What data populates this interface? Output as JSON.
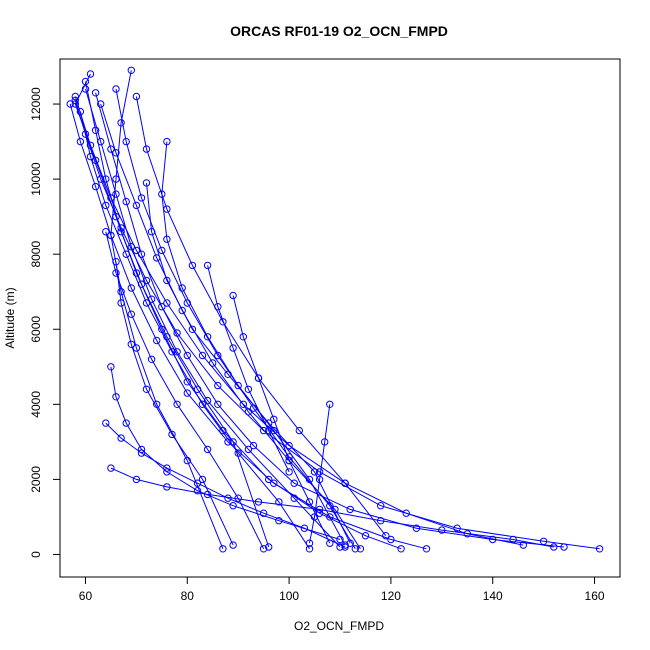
{
  "chart_data": {
    "type": "line",
    "title": "ORCAS RF01-19 O2_OCN_FMPD",
    "xlabel": "O2_OCN_FMPD",
    "ylabel": "Altitude (m)",
    "xlim": [
      55,
      165
    ],
    "ylim": [
      -600,
      13200
    ],
    "x_ticks": [
      60,
      80,
      100,
      120,
      140,
      160
    ],
    "y_ticks": [
      0,
      2000,
      4000,
      6000,
      8000,
      10000,
      12000
    ],
    "grid": false,
    "legend": "none",
    "marker": "open-circle",
    "series_color": "#0000ff",
    "series": [
      {
        "x": [
          61,
          58,
          62,
          66,
          70,
          75,
          80,
          87,
          96,
          106,
          115,
          122
        ],
        "y": [
          12800,
          12000,
          10500,
          9000,
          7500,
          6000,
          4600,
          3300,
          2000,
          1100,
          500,
          150
        ]
      },
      {
        "x": [
          58,
          60,
          63,
          67,
          72,
          78,
          86,
          95,
          106,
          118,
          133,
          150,
          161
        ],
        "y": [
          12100,
          11200,
          10000,
          8700,
          7300,
          5900,
          4500,
          3300,
          2200,
          1300,
          700,
          350,
          150
        ]
      },
      {
        "x": [
          60,
          63,
          66,
          69,
          73,
          78,
          84,
          92,
          101,
          110
        ],
        "y": [
          12400,
          11000,
          9600,
          8200,
          6800,
          5400,
          4100,
          2800,
          1500,
          200
        ]
      },
      {
        "x": [
          57,
          59,
          62,
          65,
          69,
          74,
          80,
          88,
          97,
          108,
          120,
          127
        ],
        "y": [
          12000,
          11000,
          9800,
          8500,
          7100,
          5700,
          4300,
          3000,
          1900,
          1000,
          400,
          150
        ]
      },
      {
        "x": [
          59,
          61,
          64,
          68,
          72,
          77,
          83,
          90,
          98,
          104
        ],
        "y": [
          11800,
          10600,
          9300,
          8000,
          6700,
          5400,
          4000,
          2700,
          1400,
          150
        ]
      },
      {
        "x": [
          62,
          65,
          68,
          71,
          75,
          80,
          86,
          93,
          101,
          112,
          125,
          140,
          154
        ],
        "y": [
          12300,
          10800,
          9400,
          8000,
          6600,
          5300,
          4000,
          2900,
          1900,
          1200,
          700,
          400,
          200
        ]
      },
      {
        "x": [
          69,
          67,
          66,
          65,
          67,
          70,
          74,
          80,
          87
        ],
        "y": [
          12900,
          11500,
          10000,
          8500,
          7000,
          5500,
          4000,
          2500,
          150
        ]
      },
      {
        "x": [
          58,
          61,
          65,
          70,
          76,
          83,
          91,
          100,
          111,
          123,
          135,
          146
        ],
        "y": [
          12200,
          10900,
          9500,
          8100,
          6700,
          5300,
          4000,
          2900,
          1900,
          1100,
          550,
          250
        ]
      },
      {
        "x": [
          60,
          62,
          64,
          67,
          71,
          76,
          82,
          89,
          96
        ],
        "y": [
          12600,
          11300,
          10000,
          8600,
          7200,
          5800,
          4400,
          3000,
          200
        ]
      },
      {
        "x": [
          63,
          66,
          70,
          74,
          79,
          85,
          92,
          100,
          109,
          114
        ],
        "y": [
          12000,
          10700,
          9300,
          7900,
          6500,
          5100,
          3800,
          2500,
          1200,
          150
        ]
      },
      {
        "x": [
          66,
          68,
          71,
          75,
          80,
          86,
          93,
          100,
          108,
          113
        ],
        "y": [
          12400,
          11000,
          9500,
          8100,
          6700,
          5300,
          3900,
          2600,
          1300,
          150
        ]
      },
      {
        "x": [
          70,
          72,
          76,
          81,
          87,
          94,
          102,
          111,
          119
        ],
        "y": [
          12200,
          10800,
          9200,
          7700,
          6200,
          4700,
          3300,
          1900,
          500
        ]
      },
      {
        "x": [
          76,
          75,
          76,
          79,
          84,
          90,
          97,
          104,
          111
        ],
        "y": [
          11000,
          9600,
          8400,
          7100,
          5800,
          4500,
          3300,
          2000,
          250
        ]
      },
      {
        "x": [
          72,
          73,
          76,
          81,
          88,
          96,
          105,
          112
        ],
        "y": [
          9900,
          8600,
          7300,
          6000,
          4800,
          3500,
          2200,
          300
        ]
      },
      {
        "x": [
          64,
          66,
          69,
          73,
          78,
          84,
          90,
          95
        ],
        "y": [
          8600,
          7500,
          6400,
          5200,
          4000,
          2800,
          1500,
          150
        ]
      },
      {
        "x": [
          66,
          67,
          69,
          72,
          77,
          83,
          89
        ],
        "y": [
          7800,
          6700,
          5600,
          4400,
          3200,
          2000,
          250
        ]
      },
      {
        "x": [
          65,
          66,
          68,
          71,
          76,
          82,
          89,
          98,
          110
        ],
        "y": [
          5000,
          4200,
          3500,
          2800,
          2200,
          1700,
          1300,
          900,
          400
        ]
      },
      {
        "x": [
          108,
          107,
          106,
          105,
          104
        ],
        "y": [
          4000,
          3000,
          2000,
          1000,
          300
        ]
      },
      {
        "x": [
          84,
          86,
          89,
          92,
          96,
          100
        ],
        "y": [
          7700,
          6600,
          5500,
          4400,
          3300,
          2200
        ]
      },
      {
        "x": [
          89,
          91,
          94,
          97,
          100,
          104,
          108
        ],
        "y": [
          6900,
          5800,
          4700,
          3600,
          2500,
          1400,
          300
        ]
      },
      {
        "x": [
          65,
          70,
          76,
          84,
          94,
          106,
          118,
          130,
          144,
          152
        ],
        "y": [
          2300,
          2000,
          1800,
          1600,
          1400,
          1200,
          900,
          650,
          400,
          200
        ]
      },
      {
        "x": [
          64,
          67,
          71,
          76,
          82,
          88,
          95,
          103,
          111
        ],
        "y": [
          3500,
          3100,
          2700,
          2300,
          1900,
          1500,
          1100,
          700,
          200
        ]
      }
    ]
  }
}
